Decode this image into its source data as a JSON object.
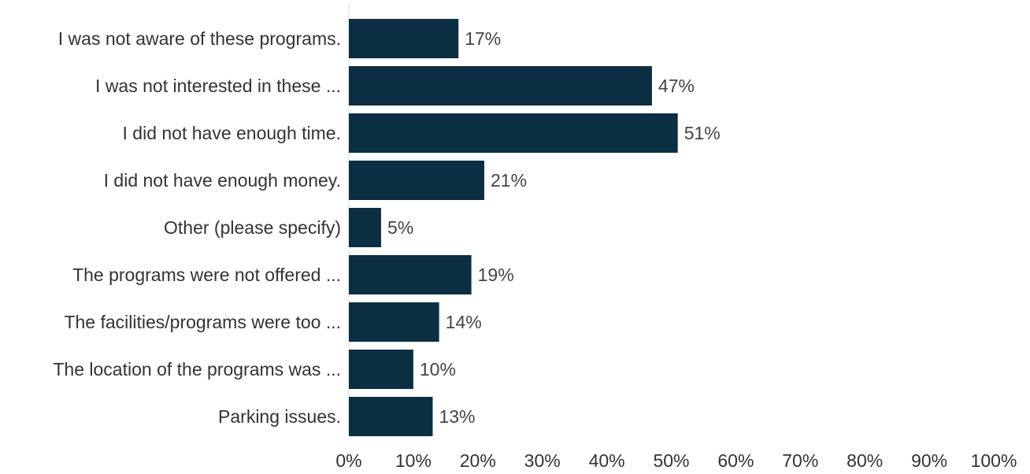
{
  "colors": {
    "bar": "#0b2e43",
    "axis": "#dddddd",
    "text": "#333333",
    "value_text": "#444444"
  },
  "chart_data": {
    "type": "bar",
    "orientation": "horizontal",
    "categories": [
      "I was not aware of these programs.",
      "I was not interested in these ...",
      "I did not have enough time.",
      "I did not have enough money.",
      "Other (please specify)",
      "The programs were not offered ...",
      "The facilities/programs were too ...",
      "The location of the programs was ...",
      "Parking issues."
    ],
    "values": [
      17,
      47,
      51,
      21,
      5,
      19,
      14,
      10,
      13
    ],
    "value_labels": [
      "17%",
      "47%",
      "51%",
      "21%",
      "5%",
      "19%",
      "14%",
      "10%",
      "13%"
    ],
    "xlim": [
      0,
      100
    ],
    "ticks": [
      "0%",
      "10%",
      "20%",
      "30%",
      "40%",
      "50%",
      "60%",
      "70%",
      "80%",
      "90%",
      "100%"
    ],
    "title": "",
    "xlabel": "",
    "ylabel": "",
    "grid": false,
    "legend": "none"
  }
}
